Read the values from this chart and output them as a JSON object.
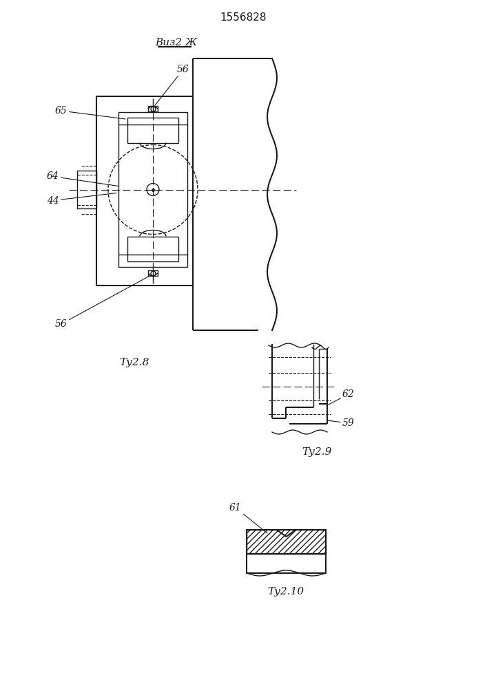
{
  "title": "1556828",
  "background_color": "#ffffff",
  "line_color": "#1a1a1a",
  "fig8_label": "Τу2.8",
  "fig9_label": "Τу2.9",
  "fig10_label": "Τу2.10",
  "vid_label": "Виз2 Ж",
  "label_56_top": "56",
  "label_65": "65",
  "label_64": "64",
  "label_44": "44",
  "label_56_bot": "56",
  "label_62": "62",
  "label_59": "59",
  "label_61": "61"
}
